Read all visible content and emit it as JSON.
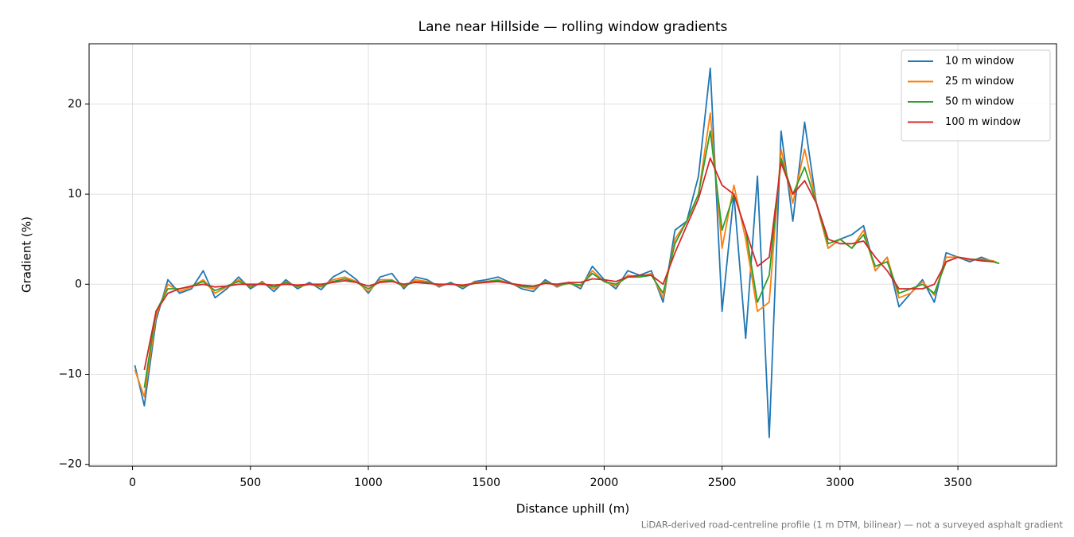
{
  "chart_data": {
    "type": "line",
    "title": "Lane near Hillside — rolling window gradients",
    "x_label": "Distance uphill (m)",
    "y_label": "Gradient (%)",
    "annotation": "LiDAR-derived road-centreline profile (1 m DTM, bilinear) — not a surveyed asphalt gradient",
    "x": [
      10,
      50,
      100,
      150,
      200,
      250,
      300,
      350,
      400,
      450,
      500,
      550,
      600,
      650,
      700,
      750,
      800,
      850,
      900,
      950,
      1000,
      1050,
      1100,
      1150,
      1200,
      1250,
      1300,
      1350,
      1400,
      1450,
      1500,
      1550,
      1600,
      1650,
      1700,
      1750,
      1800,
      1850,
      1900,
      1950,
      2000,
      2050,
      2100,
      2150,
      2200,
      2250,
      2300,
      2350,
      2400,
      2450,
      2500,
      2550,
      2600,
      2650,
      2700,
      2750,
      2800,
      2850,
      2900,
      2950,
      3000,
      3050,
      3100,
      3150,
      3200,
      3250,
      3300,
      3350,
      3400,
      3450,
      3500,
      3550,
      3600,
      3650,
      3675
    ],
    "series": [
      {
        "name": "10 m window",
        "color": "#1f77b4",
        "values": [
          -9,
          -13.5,
          -4,
          0.5,
          -1,
          -0.5,
          1.5,
          -1.5,
          -0.5,
          0.8,
          -0.5,
          0.3,
          -0.8,
          0.5,
          -0.5,
          0.2,
          -0.6,
          0.8,
          1.5,
          0.5,
          -1,
          0.8,
          1.2,
          -0.5,
          0.8,
          0.5,
          -0.3,
          0.2,
          -0.5,
          0.3,
          0.5,
          0.8,
          0.2,
          -0.5,
          -0.8,
          0.5,
          -0.3,
          0.2,
          -0.5,
          2,
          0.5,
          -0.5,
          1.5,
          1,
          1.5,
          -2,
          6,
          7,
          12,
          24,
          -3,
          10,
          -6,
          12,
          -17,
          17,
          7,
          18,
          9,
          4,
          5,
          5.5,
          6.5,
          1.5,
          3,
          -2.5,
          -1,
          0.5,
          -2,
          3.5,
          3,
          2.5,
          3,
          2.5,
          2.3
        ]
      },
      {
        "name": "25 m window",
        "color": "#ff7f0e",
        "values": [
          -9.5,
          -12.5,
          -3.5,
          0,
          -0.8,
          -0.3,
          0.5,
          -1,
          -0.3,
          0.5,
          -0.3,
          0.2,
          -0.5,
          0.3,
          -0.3,
          0,
          -0.3,
          0.5,
          0.8,
          0.3,
          -0.8,
          0.5,
          0.5,
          -0.3,
          0.5,
          0.3,
          -0.2,
          0.1,
          -0.3,
          0.2,
          0.3,
          0.5,
          0.1,
          -0.3,
          -0.5,
          0.3,
          -0.2,
          0.1,
          -0.2,
          1.5,
          0.3,
          -0.2,
          1,
          0.8,
          1.2,
          -1.5,
          5,
          7,
          10,
          19,
          4,
          11,
          5,
          -3,
          -2,
          15,
          9,
          15,
          9,
          4,
          5,
          4,
          6,
          1.5,
          3,
          -1.5,
          -1,
          0.3,
          -1.2,
          3,
          3,
          2.7,
          2.8,
          2.6,
          2.3
        ]
      },
      {
        "name": "50 m window",
        "color": "#2ca02c",
        "values": [
          null,
          -11.5,
          -3,
          -0.5,
          -0.5,
          -0.2,
          0.3,
          -0.7,
          -0.2,
          0.3,
          -0.2,
          0.1,
          -0.3,
          0.2,
          -0.2,
          0,
          -0.2,
          0.3,
          0.6,
          0.2,
          -0.5,
          0.3,
          0.4,
          -0.2,
          0.3,
          0.2,
          -0.1,
          0.1,
          -0.2,
          0.1,
          0.3,
          0.4,
          0.1,
          -0.2,
          -0.3,
          0.2,
          -0.1,
          0.1,
          -0.1,
          1.2,
          0.3,
          0,
          0.8,
          0.8,
          1,
          -1,
          4.5,
          7,
          10,
          17,
          6,
          10,
          6,
          -2,
          1,
          14,
          10,
          13,
          9,
          4.5,
          5,
          4,
          5.5,
          2,
          2.5,
          -1,
          -0.5,
          0,
          -1,
          2.5,
          3,
          2.8,
          2.7,
          2.5,
          2.3
        ]
      },
      {
        "name": "100 m window",
        "color": "#d62728",
        "values": [
          null,
          -9.5,
          -3,
          -1,
          -0.5,
          -0.2,
          0,
          -0.3,
          -0.2,
          0,
          0,
          0,
          -0.1,
          0,
          -0.1,
          0,
          0,
          0.2,
          0.4,
          0.2,
          -0.2,
          0.2,
          0.3,
          0,
          0.2,
          0.1,
          0,
          0,
          -0.1,
          0.1,
          0.2,
          0.3,
          0.1,
          -0.1,
          -0.2,
          0.1,
          0,
          0.2,
          0.2,
          0.6,
          0.5,
          0.3,
          0.8,
          1,
          1,
          0,
          3.5,
          6.5,
          9.5,
          14,
          11,
          10,
          6,
          2,
          3,
          13.5,
          10,
          11.5,
          9,
          5,
          4.5,
          4.5,
          4.8,
          3,
          1.5,
          -0.5,
          -0.5,
          -0.5,
          0,
          2.5,
          3,
          2.8,
          2.6,
          2.5,
          null
        ]
      }
    ],
    "xlim": [
      -184,
      3918
    ],
    "ylim": [
      -20.2,
      26.7
    ],
    "xticks": [
      0,
      500,
      1000,
      1500,
      2000,
      2500,
      3000,
      3500
    ],
    "yticks": [
      {
        "value": -20,
        "label": "−20"
      },
      {
        "value": -10,
        "label": "−10"
      },
      0,
      10,
      20
    ],
    "grid": true,
    "legend": "upper right"
  }
}
